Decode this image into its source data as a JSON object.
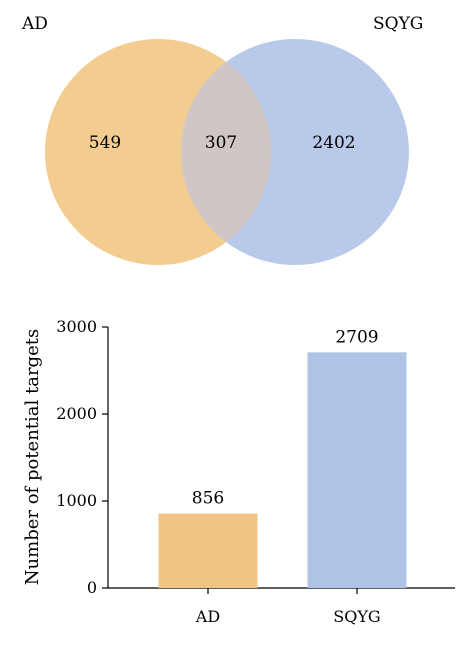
{
  "chart_data": [
    {
      "type": "venn",
      "sets": [
        {
          "name": "AD",
          "unique": 549,
          "color": "#f3cc8f"
        },
        {
          "name": "SQYG",
          "unique": 2402,
          "color": "#b9c9ea"
        }
      ],
      "intersection": 307,
      "overlap_color": "#cfc6c5"
    },
    {
      "type": "bar",
      "categories": [
        "AD",
        "SQYG"
      ],
      "values": [
        856,
        2709
      ],
      "colors": [
        "#f0c584",
        "#aec3e6"
      ],
      "ylabel": "Number of potential targets",
      "ylim": [
        0,
        3000
      ],
      "yticks": [
        0,
        1000,
        2000,
        3000
      ],
      "grid": false,
      "data_labels": true
    }
  ]
}
